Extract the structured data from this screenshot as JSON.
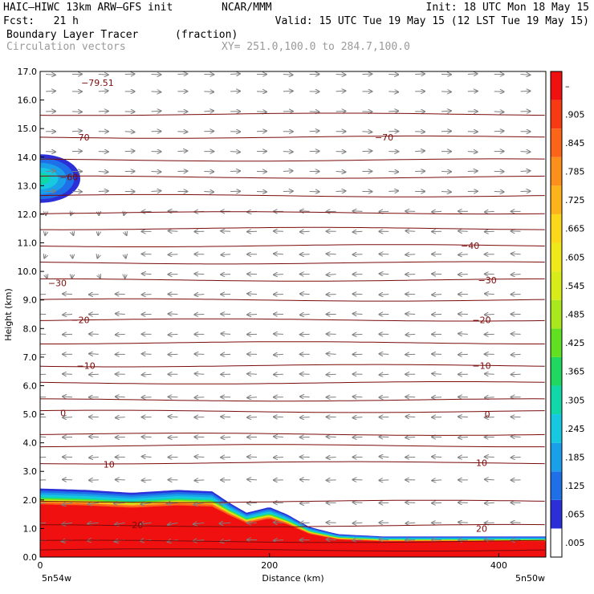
{
  "header": {
    "model": "HAIC–HIWC 13km ARW–GFS init",
    "org": "NCAR/MMM",
    "init": "Init: 18 UTC Mon 18 May 15",
    "fcst": "Fcst:   21 h",
    "valid": "Valid: 15 UTC Tue 19 May 15 (12 LST Tue 19 May 15)",
    "field": "Boundary Layer Tracer",
    "units": "(fraction)",
    "vectors": "Circulation vectors",
    "xy": "XY= 251.0,100.0 to 284.7,100.0"
  },
  "colors": {
    "isotherm": "#7a0a0a",
    "vector": "#7f7f7f",
    "frame": "#000000"
  },
  "chart_data": {
    "type": "heatmap",
    "xlabel": "Distance (km)",
    "ylabel": "Height (km)",
    "xlim": [
      0,
      441
    ],
    "ylim": [
      0.0,
      17.0
    ],
    "x_ticks": [
      0,
      200,
      400
    ],
    "y_ticks": [
      "0.0",
      "1.0",
      "2.0",
      "3.0",
      "4.0",
      "5.0",
      "6.0",
      "7.0",
      "8.0",
      "9.0",
      "10.0",
      "11.0",
      "12.0",
      "13.0",
      "14.0",
      "15.0",
      "16.0",
      "17.0"
    ],
    "x_end_labels": {
      "left": "5n54w",
      "right": "5n50w"
    },
    "colorbar": {
      "labels": [
        ".005",
        ".065",
        ".125",
        ".185",
        ".245",
        ".305",
        ".365",
        ".425",
        ".485",
        ".545",
        ".605",
        ".665",
        ".725",
        ".785",
        ".845",
        ".905",
        "–"
      ],
      "colors": [
        "#ffffff",
        "#2a2fd8",
        "#1f6fe8",
        "#1aa0e8",
        "#16c8e0",
        "#10d8a8",
        "#20d860",
        "#60e020",
        "#a8e81c",
        "#d8ec1a",
        "#f0e81a",
        "#fcd81a",
        "#fcb41a",
        "#fc901a",
        "#fc6418",
        "#f83a14",
        "#f01010"
      ]
    },
    "tracer_top_km": [
      [
        0,
        2.4
      ],
      [
        40,
        2.35
      ],
      [
        80,
        2.25
      ],
      [
        120,
        2.35
      ],
      [
        150,
        2.3
      ],
      [
        165,
        1.9
      ],
      [
        180,
        1.55
      ],
      [
        200,
        1.75
      ],
      [
        215,
        1.5
      ],
      [
        235,
        1.05
      ],
      [
        260,
        0.8
      ],
      [
        300,
        0.72
      ],
      [
        441,
        0.72
      ]
    ],
    "upper_tracer_blob": {
      "x_km": [
        0,
        35
      ],
      "z_km": [
        12.4,
        14.1
      ]
    },
    "isotherm_labels": [
      {
        "text": "−79.51",
        "x": 50,
        "z": 16.6
      },
      {
        "text": "−70",
        "x": 35,
        "z": 14.7
      },
      {
        "text": "−70",
        "x": 300,
        "z": 14.7
      },
      {
        "text": "−60",
        "x": 25,
        "z": 13.3
      },
      {
        "text": "−40",
        "x": 375,
        "z": 10.9
      },
      {
        "text": "−30",
        "x": 15,
        "z": 9.6
      },
      {
        "text": "−30",
        "x": 390,
        "z": 9.7
      },
      {
        "text": "−20",
        "x": 35,
        "z": 8.3
      },
      {
        "text": "−20",
        "x": 385,
        "z": 8.3
      },
      {
        "text": "−10",
        "x": 40,
        "z": 6.7
      },
      {
        "text": "−10",
        "x": 385,
        "z": 6.7
      },
      {
        "text": "0",
        "x": 20,
        "z": 5.05
      },
      {
        "text": "0",
        "x": 390,
        "z": 5.0
      },
      {
        "text": "10",
        "x": 60,
        "z": 3.25
      },
      {
        "text": "10",
        "x": 385,
        "z": 3.3
      },
      {
        "text": "20",
        "x": 85,
        "z": 1.12
      },
      {
        "text": "20",
        "x": 385,
        "z": 1.0
      }
    ],
    "isotherm_levels_km": [
      0.25,
      0.55,
      1.1,
      1.95,
      3.3,
      3.9,
      4.3,
      5.1,
      5.5,
      6.1,
      6.7,
      7.5,
      8.3,
      9.0,
      9.7,
      10.3,
      10.9,
      11.5,
      12.05,
      12.65,
      13.3,
      13.9,
      14.7,
      15.5
    ],
    "vector_rows_km": [
      0.6,
      1.2,
      1.9,
      2.7,
      3.5,
      4.2,
      4.9,
      5.6,
      6.4,
      7.1,
      7.8,
      8.5,
      9.2,
      9.9,
      10.6,
      11.4,
      12.1,
      12.8,
      13.5,
      14.2,
      14.9,
      15.6,
      16.3,
      16.9
    ],
    "vector_cols_km": [
      5,
      28,
      51,
      74,
      97,
      120,
      143,
      166,
      189,
      212,
      235,
      258,
      281,
      304,
      327,
      350,
      373,
      396,
      419
    ]
  }
}
